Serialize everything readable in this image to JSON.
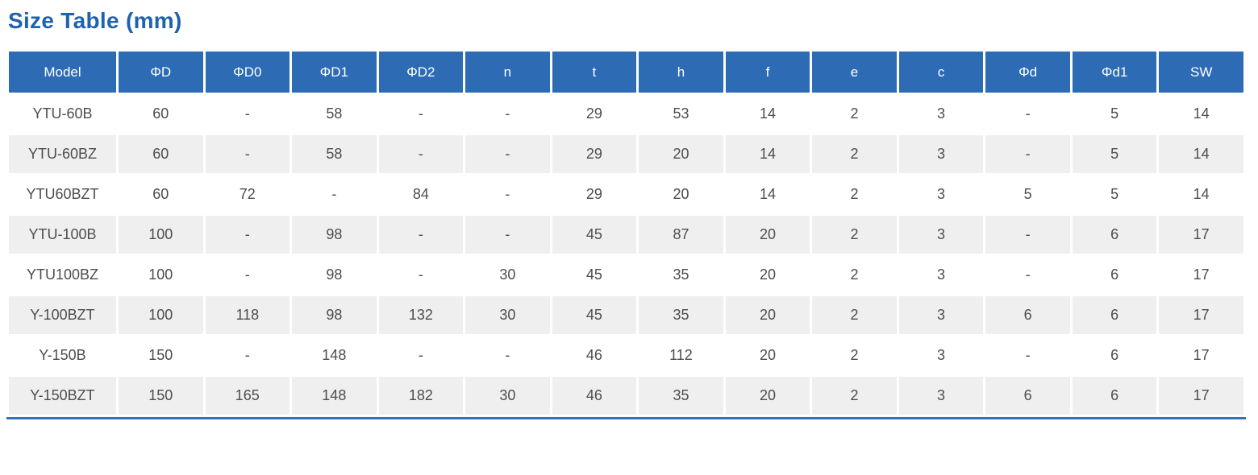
{
  "page": {
    "title": "Size Table (mm)"
  },
  "theme": {
    "title_color": "#1f62ae",
    "header_bg": "#2d6cb4",
    "header_text": "#ffffff",
    "row_alt_bg": "#efefef",
    "body_text": "#4d4d4d",
    "bottom_border": "#3a70b7"
  },
  "table": {
    "columns": [
      "Model",
      "ΦD",
      "ΦD0",
      "ΦD1",
      "ΦD2",
      "n",
      "t",
      "h",
      "f",
      "e",
      "c",
      "Φd",
      "Φd1",
      "SW"
    ],
    "rows": [
      [
        "YTU-60B",
        "60",
        "-",
        "58",
        "-",
        "-",
        "29",
        "53",
        "14",
        "2",
        "3",
        "-",
        "5",
        "14"
      ],
      [
        "YTU-60BZ",
        "60",
        "-",
        "58",
        "-",
        "-",
        "29",
        "20",
        "14",
        "2",
        "3",
        "-",
        "5",
        "14"
      ],
      [
        "YTU60BZT",
        "60",
        "72",
        "-",
        "84",
        "-",
        "29",
        "20",
        "14",
        "2",
        "3",
        "5",
        "5",
        "14"
      ],
      [
        "YTU-100B",
        "100",
        "-",
        "98",
        "-",
        "-",
        "45",
        "87",
        "20",
        "2",
        "3",
        "-",
        "6",
        "17"
      ],
      [
        "YTU100BZ",
        "100",
        "-",
        "98",
        "-",
        "30",
        "45",
        "35",
        "20",
        "2",
        "3",
        "-",
        "6",
        "17"
      ],
      [
        "Y-100BZT",
        "100",
        "118",
        "98",
        "132",
        "30",
        "45",
        "35",
        "20",
        "2",
        "3",
        "6",
        "6",
        "17"
      ],
      [
        "Y-150B",
        "150",
        "-",
        "148",
        "-",
        "-",
        "46",
        "112",
        "20",
        "2",
        "3",
        "-",
        "6",
        "17"
      ],
      [
        "Y-150BZT",
        "150",
        "165",
        "148",
        "182",
        "30",
        "46",
        "35",
        "20",
        "2",
        "3",
        "6",
        "6",
        "17"
      ]
    ]
  }
}
